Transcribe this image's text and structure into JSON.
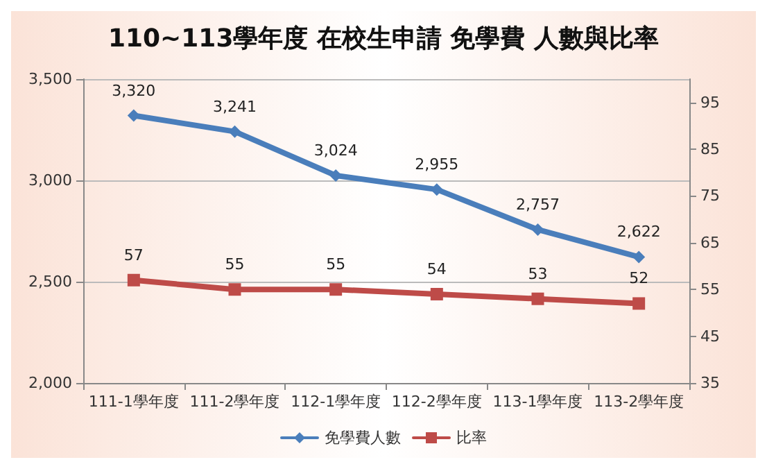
{
  "chart_data": {
    "type": "line",
    "title": "110~113學年度 在校生申請 免學費 人數與比率",
    "categories": [
      "111-1學年度",
      "111-2學年度",
      "112-1學年度",
      "112-2學年度",
      "113-1學年度",
      "113-2學年度"
    ],
    "series": [
      {
        "name": "免學費人數",
        "color": "#4a7ebb",
        "marker": "diamond",
        "values": [
          3320,
          3241,
          3024,
          2955,
          2757,
          2622
        ],
        "value_labels": [
          "3,320",
          "3,241",
          "3,024",
          "2,955",
          "2,757",
          "2,622"
        ]
      },
      {
        "name": "比率",
        "color": "#be4b48",
        "marker": "square",
        "axis": "y2",
        "values": [
          57,
          55,
          55,
          54,
          53,
          52
        ]
      }
    ],
    "ylim": [
      2000,
      3500
    ],
    "yticks": [
      {
        "value": 2000,
        "label": "2,000"
      },
      {
        "value": 2500,
        "label": "2,500"
      },
      {
        "value": 3000,
        "label": "3,000"
      },
      {
        "value": 3500,
        "label": "3,500"
      }
    ],
    "y2lim": [
      35,
      100
    ],
    "y2ticks": [
      35,
      45,
      55,
      65,
      75,
      85,
      95
    ],
    "grid": "y",
    "legend": "bottom",
    "data_labels": true
  }
}
